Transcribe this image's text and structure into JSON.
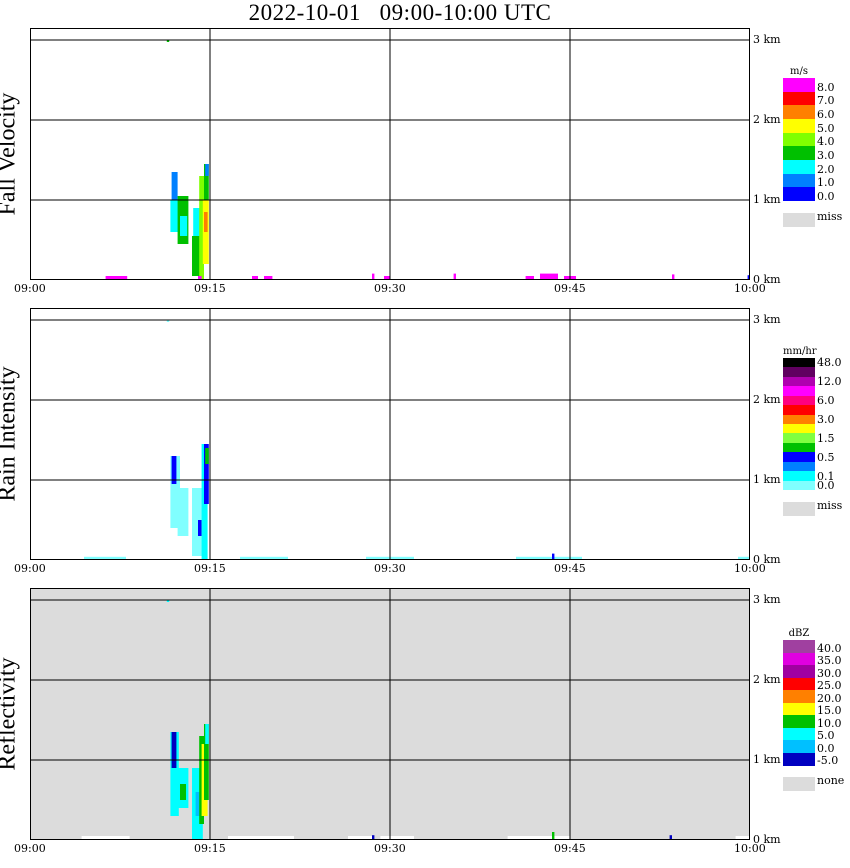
{
  "title": "2022-10-01   09:00-10:00 UTC",
  "chart_data": [
    {
      "type": "heatmap",
      "ylabel": "Fall Velocity",
      "xlim_minutes": [
        0,
        60
      ],
      "ylim_km": [
        0,
        3.15
      ],
      "x_ticks": [
        "09:00",
        "09:15",
        "09:30",
        "09:45",
        "10:00"
      ],
      "y_ticks": [
        "0 km",
        "1 km",
        "2 km",
        "3 km"
      ],
      "background": "#ffffff",
      "colorbar": {
        "unit": "m/s",
        "levels": [
          0,
          1,
          2,
          3,
          4,
          5,
          6,
          7,
          8
        ],
        "colors": [
          "#0000ff",
          "#0080ff",
          "#00ffff",
          "#00c000",
          "#80ff00",
          "#ffff00",
          "#ff8000",
          "#ff0000",
          "#ff00ff"
        ],
        "labels": [
          {
            "text": "8.0",
            "after_band": 1
          },
          {
            "text": "7.0",
            "after_band": 2
          },
          {
            "text": "6.0",
            "after_band": 3
          },
          {
            "text": "5.0",
            "after_band": 4
          },
          {
            "text": "4.0",
            "after_band": 5
          },
          {
            "text": "3.0",
            "after_band": 6
          },
          {
            "text": "2.0",
            "after_band": 7
          },
          {
            "text": "1.0",
            "after_band": 8
          },
          {
            "text": "0.0",
            "after_band": 9
          }
        ],
        "missing_label": "miss"
      },
      "echoes": [
        [
          11.8,
          12.3,
          0.95,
          1.35,
          1.5
        ],
        [
          11.7,
          12.5,
          0.6,
          1.0,
          2.5
        ],
        [
          12.3,
          13.2,
          0.45,
          1.05,
          3.5
        ],
        [
          12.5,
          13.1,
          0.55,
          0.8,
          2.5
        ],
        [
          13.6,
          14.4,
          0.3,
          0.9,
          2.5
        ],
        [
          13.5,
          14.5,
          0.05,
          0.55,
          3.5
        ],
        [
          14.1,
          14.5,
          0.0,
          1.3,
          4.5
        ],
        [
          14.4,
          14.9,
          0.2,
          1.0,
          5.5
        ],
        [
          14.5,
          14.8,
          0.6,
          0.85,
          6.5
        ],
        [
          14.5,
          14.9,
          1.0,
          1.45,
          3.5
        ],
        [
          14.6,
          14.9,
          1.3,
          1.45,
          1.5
        ],
        [
          14.0,
          14.3,
          0.0,
          0.05,
          8.5
        ],
        [
          11.4,
          11.6,
          2.98,
          3.0,
          3.5
        ],
        [
          6.3,
          8.1,
          0.0,
          0.05,
          8.5
        ],
        [
          18.5,
          19.0,
          0.0,
          0.05,
          8.5
        ],
        [
          19.5,
          20.2,
          0.0,
          0.05,
          8.5
        ],
        [
          28.5,
          28.7,
          0.0,
          0.08,
          8.5
        ],
        [
          29.5,
          30.0,
          0.0,
          0.05,
          8.5
        ],
        [
          35.3,
          35.5,
          0.0,
          0.08,
          8.5
        ],
        [
          41.3,
          42.0,
          0.0,
          0.05,
          8.5
        ],
        [
          42.5,
          44.0,
          0.0,
          0.08,
          8.5
        ],
        [
          44.5,
          45.5,
          0.0,
          0.05,
          8.5
        ],
        [
          53.5,
          53.7,
          0.0,
          0.07,
          8.5
        ],
        [
          59.8,
          60.0,
          0.0,
          0.06,
          0.5
        ]
      ]
    },
    {
      "type": "heatmap",
      "ylabel": "Rain Intensity",
      "xlim_minutes": [
        0,
        60
      ],
      "ylim_km": [
        0,
        3.15
      ],
      "x_ticks": [
        "09:00",
        "09:15",
        "09:30",
        "09:45",
        "10:00"
      ],
      "y_ticks": [
        "0 km",
        "1 km",
        "2 km",
        "3 km"
      ],
      "background": "#ffffff",
      "colorbar": {
        "unit": "mm/hr",
        "levels": [
          0,
          0.1,
          0.25,
          0.5,
          1,
          1.5,
          2,
          3,
          4.5,
          6,
          9,
          12,
          24,
          48
        ],
        "colors": [
          "#80ffff",
          "#00ffff",
          "#0080ff",
          "#0000ff",
          "#00c000",
          "#80ff40",
          "#ffff00",
          "#ff8000",
          "#ff0000",
          "#ff0080",
          "#ff00ff",
          "#b000b0",
          "#600060",
          "#000000"
        ],
        "labels": [
          {
            "text": "48.0",
            "after_band": 1
          },
          {
            "text": "12.0",
            "after_band": 3
          },
          {
            "text": "6.0",
            "after_band": 5
          },
          {
            "text": "3.0",
            "after_band": 7
          },
          {
            "text": "1.5",
            "after_band": 9
          },
          {
            "text": "0.5",
            "after_band": 11
          },
          {
            "text": "0.1",
            "after_band": 13
          },
          {
            "text": "0.0",
            "after_band": 14
          }
        ],
        "missing_label": "miss"
      },
      "echoes": [
        [
          11.7,
          12.5,
          0.4,
          1.3,
          0.05
        ],
        [
          11.8,
          12.2,
          0.95,
          1.3,
          0.6
        ],
        [
          12.3,
          13.2,
          0.3,
          0.9,
          0.05
        ],
        [
          13.5,
          14.4,
          0.05,
          0.9,
          0.05
        ],
        [
          14.0,
          14.3,
          0.3,
          0.5,
          0.6
        ],
        [
          14.3,
          14.8,
          0.0,
          1.45,
          0.15
        ],
        [
          14.5,
          14.9,
          0.7,
          1.45,
          0.6
        ],
        [
          14.6,
          14.9,
          1.2,
          1.4,
          1.2
        ],
        [
          11.4,
          11.6,
          2.98,
          3.0,
          0.05
        ],
        [
          4.5,
          8.0,
          0.0,
          0.04,
          0.05
        ],
        [
          17.5,
          21.5,
          0.0,
          0.04,
          0.05
        ],
        [
          28.0,
          32.0,
          0.0,
          0.04,
          0.05
        ],
        [
          40.5,
          46.0,
          0.0,
          0.04,
          0.05
        ],
        [
          43.5,
          43.7,
          0.0,
          0.08,
          0.6
        ],
        [
          59.0,
          60.0,
          0.0,
          0.04,
          0.05
        ]
      ]
    },
    {
      "type": "heatmap",
      "ylabel": "Reflectivity",
      "xlim_minutes": [
        0,
        60
      ],
      "ylim_km": [
        0,
        3.15
      ],
      "x_ticks": [
        "09:00",
        "09:15",
        "09:30",
        "09:45",
        "10:00"
      ],
      "y_ticks": [
        "0 km",
        "1 km",
        "2 km",
        "3 km"
      ],
      "background": "#dcdcdc",
      "colorbar": {
        "unit": "dBZ",
        "levels": [
          -5,
          0,
          5,
          10,
          15,
          20,
          25,
          30,
          35,
          40
        ],
        "colors": [
          "#0000c0",
          "#00c0ff",
          "#00ffff",
          "#00c000",
          "#ffff00",
          "#ff8000",
          "#ff0000",
          "#a000a0",
          "#e000e0",
          "#a040a0"
        ],
        "labels": [
          {
            "text": "40.0",
            "after_band": 1
          },
          {
            "text": "35.0",
            "after_band": 2
          },
          {
            "text": "30.0",
            "after_band": 3
          },
          {
            "text": "25.0",
            "after_band": 4
          },
          {
            "text": "20.0",
            "after_band": 5
          },
          {
            "text": "15.0",
            "after_band": 6
          },
          {
            "text": "10.0",
            "after_band": 7
          },
          {
            "text": "5.0",
            "after_band": 8
          },
          {
            "text": "0.0",
            "after_band": 9
          },
          {
            "text": "-5.0",
            "after_band": 10
          }
        ],
        "missing_label": "none"
      },
      "echoes": [
        [
          11.7,
          12.4,
          0.3,
          1.35,
          7
        ],
        [
          11.8,
          12.2,
          0.9,
          1.35,
          -2
        ],
        [
          12.3,
          13.2,
          0.4,
          0.9,
          7
        ],
        [
          12.5,
          13.0,
          0.5,
          0.7,
          12
        ],
        [
          13.5,
          14.4,
          0.0,
          0.9,
          7
        ],
        [
          13.8,
          14.3,
          0.3,
          0.6,
          2
        ],
        [
          14.1,
          14.5,
          0.2,
          1.3,
          12
        ],
        [
          14.3,
          14.8,
          0.3,
          1.2,
          17
        ],
        [
          14.5,
          14.9,
          0.5,
          1.45,
          12
        ],
        [
          14.6,
          14.9,
          1.2,
          1.45,
          7
        ],
        [
          11.4,
          11.6,
          2.98,
          3.0,
          7
        ],
        [
          4.3,
          8.3,
          0.0,
          0.05,
          99
        ],
        [
          16.5,
          22.0,
          0.0,
          0.05,
          99
        ],
        [
          26.5,
          28.5,
          0.0,
          0.05,
          99
        ],
        [
          28.5,
          28.7,
          0.0,
          0.06,
          -2
        ],
        [
          29.2,
          32.0,
          0.0,
          0.05,
          99
        ],
        [
          39.8,
          45.0,
          0.0,
          0.05,
          99
        ],
        [
          43.5,
          43.7,
          0.0,
          0.1,
          12
        ],
        [
          53.3,
          53.5,
          0.0,
          0.06,
          -2
        ],
        [
          58.8,
          60.0,
          0.0,
          0.05,
          99
        ]
      ]
    }
  ]
}
